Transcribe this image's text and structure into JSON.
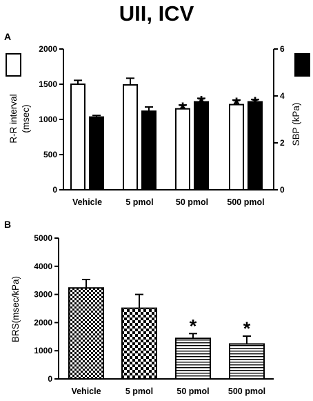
{
  "title": "UII, ICV",
  "chart_data": [
    {
      "panel": "A",
      "type": "bar",
      "categories": [
        "Vehicle",
        "5 pmol",
        "50 pmol",
        "500 pmol"
      ],
      "left_axis": {
        "label_line1": "R-R interval",
        "label_line2": "(msec)",
        "ylim": [
          0,
          2000
        ],
        "ticks": [
          "0",
          "500",
          "1000",
          "1500",
          "2000"
        ]
      },
      "right_axis": {
        "label": "SBP (kPa)",
        "ylim": [
          0,
          6
        ],
        "ticks": [
          "0",
          "2",
          "4",
          "6"
        ]
      },
      "series": [
        {
          "name": "R-R interval",
          "axis": "left",
          "fill": "white",
          "values": [
            1500,
            1490,
            1150,
            1210
          ],
          "errors": [
            55,
            95,
            55,
            65
          ],
          "significant": [
            false,
            false,
            true,
            true
          ]
        },
        {
          "name": "SBP",
          "axis": "right",
          "fill": "black",
          "values": [
            3.1,
            3.35,
            3.75,
            3.75
          ],
          "errors": [
            0.07,
            0.18,
            0.15,
            0.1
          ],
          "significant": [
            false,
            false,
            true,
            true
          ]
        }
      ],
      "significance_marker": "*"
    },
    {
      "panel": "B",
      "type": "bar",
      "categories": [
        "Vehicle",
        "5 pmol",
        "50 pmol",
        "500 pmol"
      ],
      "ylabel": "BRS(msec/kPa)",
      "ylim": [
        0,
        5000
      ],
      "yticks": [
        "0",
        "1000",
        "2000",
        "3000",
        "4000",
        "5000"
      ],
      "values": [
        3230,
        2510,
        1440,
        1240
      ],
      "errors": [
        300,
        490,
        170,
        280
      ],
      "patterns": [
        "checker-fine",
        "checker-coarse",
        "horizontal-lines",
        "horizontal-lines"
      ],
      "significant": [
        false,
        false,
        true,
        true
      ],
      "significance_marker": "*"
    }
  ]
}
